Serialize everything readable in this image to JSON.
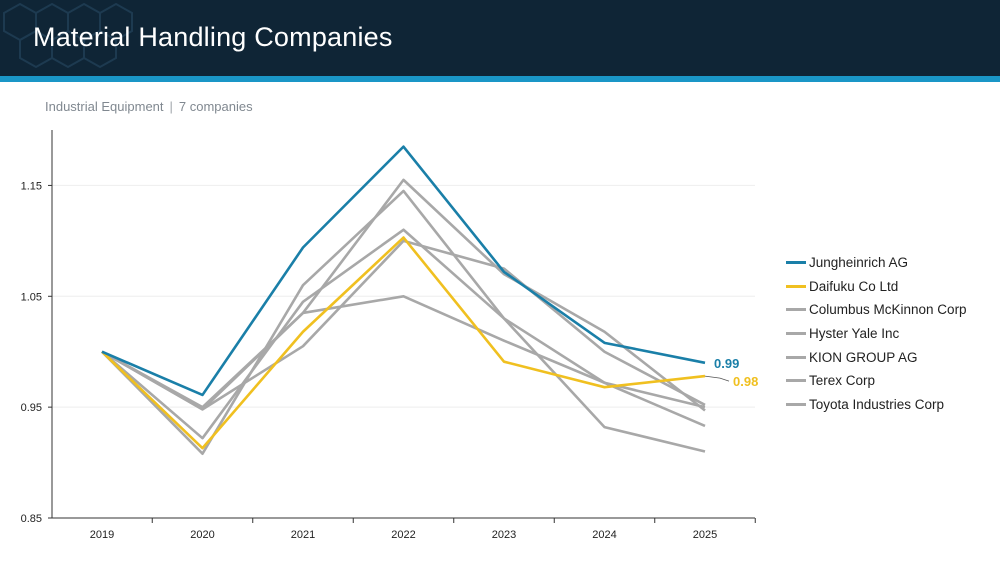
{
  "header": {
    "title": "Material Handling Companies"
  },
  "subtitle": {
    "sector": "Industrial Equipment",
    "separator": "|",
    "count": "7 companies"
  },
  "colors": {
    "header_bg": "#0f2536",
    "header_accent": "#1a96c7",
    "highlight_blue": "#1a7fa8",
    "highlight_yellow": "#f0c020",
    "peer_gray": "#a8a8a8"
  },
  "chart_data": {
    "type": "line",
    "categories": [
      "2019",
      "2020",
      "2021",
      "2022",
      "2023",
      "2024",
      "2025"
    ],
    "ylim": [
      0.85,
      1.2
    ],
    "yticks": [
      0.85,
      0.95,
      1.05,
      1.15
    ],
    "ytick_labels": [
      "0.85",
      "0.95",
      "1.05",
      "1.15"
    ],
    "grid": true,
    "legend_position": "right",
    "series": [
      {
        "name": "Jungheinrich AG",
        "color": "#1a7fa8",
        "highlight": true,
        "values": [
          1.0,
          0.961,
          1.094,
          1.185,
          1.072,
          1.008,
          0.99
        ],
        "end_label": "0.99"
      },
      {
        "name": "Daifuku Co Ltd",
        "color": "#f0c020",
        "highlight": true,
        "values": [
          1.0,
          0.913,
          1.018,
          1.103,
          0.991,
          0.968,
          0.978
        ],
        "end_label": "0.98"
      },
      {
        "name": "Columbus McKinnon Corp",
        "color": "#a8a8a8",
        "highlight": false,
        "values": [
          1.0,
          0.948,
          1.035,
          1.155,
          1.07,
          1.018,
          0.947
        ]
      },
      {
        "name": "Hyster Yale Inc",
        "color": "#a8a8a8",
        "highlight": false,
        "values": [
          1.0,
          0.948,
          1.005,
          1.1,
          1.075,
          1.0,
          0.952
        ]
      },
      {
        "name": "KION GROUP AG",
        "color": "#a8a8a8",
        "highlight": false,
        "values": [
          1.0,
          0.908,
          1.06,
          1.145,
          1.03,
          0.932,
          0.91
        ]
      },
      {
        "name": "Terex Corp",
        "color": "#a8a8a8",
        "highlight": false,
        "values": [
          1.0,
          0.95,
          1.035,
          1.05,
          1.01,
          0.972,
          0.95
        ]
      },
      {
        "name": "Toyota Industries Corp",
        "color": "#a8a8a8",
        "highlight": false,
        "values": [
          1.0,
          0.922,
          1.045,
          1.11,
          1.03,
          0.972,
          0.933
        ]
      }
    ]
  }
}
